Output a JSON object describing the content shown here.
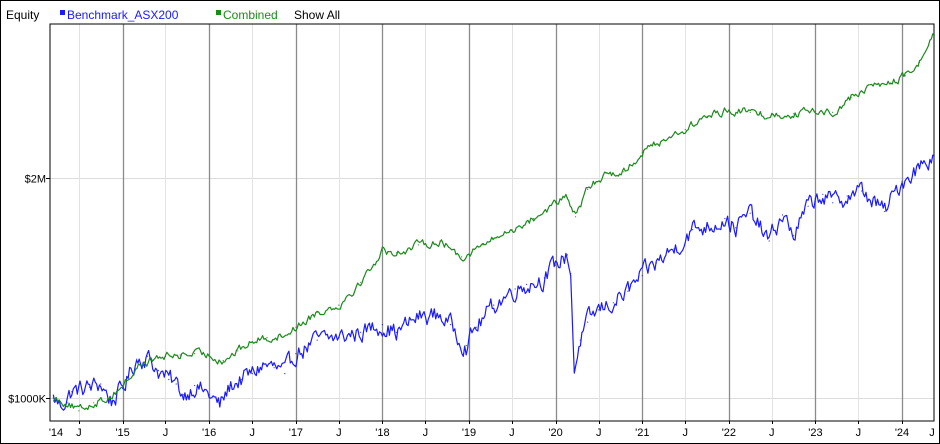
{
  "legend": {
    "title": "Equity",
    "series": [
      {
        "name": "Benchmark_ASX200",
        "color": "#1a1aff"
      },
      {
        "name": "Combined",
        "color": "#1a8a1a"
      }
    ],
    "show_all": "Show All"
  },
  "chart_data": {
    "type": "line",
    "ylabel": "Equity",
    "y_scale": "log",
    "y_ticks": [
      {
        "value": 1000000,
        "label": "$1000K"
      },
      {
        "value": 2000000,
        "label": "$2M"
      }
    ],
    "ylim": [
      930000,
      3250000
    ],
    "xlim": [
      "2014-03-01",
      "2024-05-15"
    ],
    "x_ticks": [
      {
        "date": "2014-01-01",
        "label": "'14",
        "major": true
      },
      {
        "date": "2014-07-01",
        "label": "J",
        "major": false
      },
      {
        "date": "2015-01-01",
        "label": "'15",
        "major": true
      },
      {
        "date": "2015-07-01",
        "label": "J",
        "major": false
      },
      {
        "date": "2016-01-01",
        "label": "'16",
        "major": true
      },
      {
        "date": "2016-07-01",
        "label": "J",
        "major": false
      },
      {
        "date": "2017-01-01",
        "label": "'17",
        "major": true
      },
      {
        "date": "2017-07-01",
        "label": "J",
        "major": false
      },
      {
        "date": "2018-01-01",
        "label": "'18",
        "major": true
      },
      {
        "date": "2018-07-01",
        "label": "J",
        "major": false
      },
      {
        "date": "2019-01-01",
        "label": "'19",
        "major": true
      },
      {
        "date": "2019-07-01",
        "label": "J",
        "major": false
      },
      {
        "date": "2020-01-01",
        "label": "'20",
        "major": true
      },
      {
        "date": "2020-07-01",
        "label": "J",
        "major": false
      },
      {
        "date": "2021-01-01",
        "label": "'21",
        "major": true
      },
      {
        "date": "2021-07-01",
        "label": "J",
        "major": false
      },
      {
        "date": "2022-01-01",
        "label": "'22",
        "major": true
      },
      {
        "date": "2022-07-01",
        "label": "J",
        "major": false
      },
      {
        "date": "2023-01-01",
        "label": "'23",
        "major": true
      },
      {
        "date": "2023-07-01",
        "label": "J",
        "major": false
      },
      {
        "date": "2024-01-01",
        "label": "'24",
        "major": true
      },
      {
        "date": "2024-07-01",
        "label": "J",
        "major": false
      }
    ],
    "grid": true,
    "series": [
      {
        "name": "Benchmark_ASX200",
        "color": "#1a1aff",
        "points": [
          [
            "2014-03-15",
            1000000
          ],
          [
            "2014-04-15",
            975000
          ],
          [
            "2014-06-01",
            1020000
          ],
          [
            "2014-08-15",
            1035000
          ],
          [
            "2014-10-01",
            1045000
          ],
          [
            "2014-11-15",
            990000
          ],
          [
            "2015-01-01",
            1030000
          ],
          [
            "2015-03-01",
            1130000
          ],
          [
            "2015-04-15",
            1140000
          ],
          [
            "2015-06-01",
            1090000
          ],
          [
            "2015-07-15",
            1060000
          ],
          [
            "2015-08-15",
            1045000
          ],
          [
            "2015-09-15",
            1010000
          ],
          [
            "2015-11-01",
            1040000
          ],
          [
            "2016-01-01",
            1010000
          ],
          [
            "2016-02-15",
            975000
          ],
          [
            "2016-04-01",
            1040000
          ],
          [
            "2016-05-15",
            1060000
          ],
          [
            "2016-07-01",
            1080000
          ],
          [
            "2016-08-15",
            1110000
          ],
          [
            "2016-10-01",
            1100000
          ],
          [
            "2016-11-15",
            1080000
          ],
          [
            "2017-01-01",
            1150000
          ],
          [
            "2017-04-01",
            1200000
          ],
          [
            "2017-07-01",
            1210000
          ],
          [
            "2017-10-01",
            1230000
          ],
          [
            "2018-01-01",
            1260000
          ],
          [
            "2018-03-01",
            1230000
          ],
          [
            "2018-06-01",
            1290000
          ],
          [
            "2018-09-01",
            1300000
          ],
          [
            "2018-10-15",
            1260000
          ],
          [
            "2018-12-20",
            1180000
          ],
          [
            "2019-02-01",
            1250000
          ],
          [
            "2019-04-15",
            1340000
          ],
          [
            "2019-07-15",
            1410000
          ],
          [
            "2019-09-01",
            1430000
          ],
          [
            "2019-11-15",
            1460000
          ],
          [
            "2020-01-01",
            1520000
          ],
          [
            "2020-02-20",
            1570000
          ],
          [
            "2020-03-05",
            1480000
          ],
          [
            "2020-03-20",
            1090000
          ],
          [
            "2020-04-15",
            1200000
          ],
          [
            "2020-05-15",
            1270000
          ],
          [
            "2020-07-01",
            1320000
          ],
          [
            "2020-09-01",
            1350000
          ],
          [
            "2020-11-01",
            1400000
          ],
          [
            "2021-01-01",
            1470000
          ],
          [
            "2021-03-01",
            1530000
          ],
          [
            "2021-05-15",
            1600000
          ],
          [
            "2021-08-01",
            1700000
          ],
          [
            "2021-10-01",
            1720000
          ],
          [
            "2021-12-15",
            1760000
          ],
          [
            "2022-01-30",
            1710000
          ],
          [
            "2022-04-01",
            1790000
          ],
          [
            "2022-06-20",
            1640000
          ],
          [
            "2022-08-15",
            1780000
          ],
          [
            "2022-10-01",
            1670000
          ],
          [
            "2022-12-01",
            1830000
          ],
          [
            "2023-02-01",
            1900000
          ],
          [
            "2023-03-15",
            1850000
          ],
          [
            "2023-05-15",
            1890000
          ],
          [
            "2023-07-15",
            1920000
          ],
          [
            "2023-10-20",
            1800000
          ],
          [
            "2024-01-01",
            1980000
          ],
          [
            "2024-03-15",
            2080000
          ],
          [
            "2024-05-10",
            2150000
          ]
        ]
      },
      {
        "name": "Combined",
        "color": "#1a8a1a",
        "points": [
          [
            "2014-03-15",
            1000000
          ],
          [
            "2014-05-15",
            985000
          ],
          [
            "2014-07-01",
            960000
          ],
          [
            "2014-09-01",
            985000
          ],
          [
            "2014-11-01",
            1000000
          ],
          [
            "2015-01-01",
            1040000
          ],
          [
            "2015-03-15",
            1110000
          ],
          [
            "2015-05-01",
            1125000
          ],
          [
            "2015-07-01",
            1140000
          ],
          [
            "2015-09-01",
            1145000
          ],
          [
            "2015-11-01",
            1150000
          ],
          [
            "2016-01-01",
            1145000
          ],
          [
            "2016-03-01",
            1125000
          ],
          [
            "2016-05-01",
            1160000
          ],
          [
            "2016-07-01",
            1195000
          ],
          [
            "2016-09-01",
            1210000
          ],
          [
            "2016-11-01",
            1215000
          ],
          [
            "2017-01-01",
            1250000
          ],
          [
            "2017-04-01",
            1310000
          ],
          [
            "2017-07-01",
            1340000
          ],
          [
            "2017-10-01",
            1440000
          ],
          [
            "2018-01-01",
            1590000
          ],
          [
            "2018-03-01",
            1580000
          ],
          [
            "2018-06-01",
            1620000
          ],
          [
            "2018-09-01",
            1640000
          ],
          [
            "2018-12-01",
            1560000
          ],
          [
            "2019-03-01",
            1620000
          ],
          [
            "2019-07-01",
            1700000
          ],
          [
            "2019-10-01",
            1760000
          ],
          [
            "2020-01-01",
            1850000
          ],
          [
            "2020-02-20",
            1880000
          ],
          [
            "2020-03-25",
            1770000
          ],
          [
            "2020-05-15",
            1930000
          ],
          [
            "2020-08-01",
            2030000
          ],
          [
            "2020-10-15",
            2040000
          ],
          [
            "2021-01-01",
            2170000
          ],
          [
            "2021-04-01",
            2260000
          ],
          [
            "2021-07-01",
            2330000
          ],
          [
            "2021-10-01",
            2430000
          ],
          [
            "2022-01-01",
            2480000
          ],
          [
            "2022-04-01",
            2460000
          ],
          [
            "2022-07-01",
            2440000
          ],
          [
            "2022-10-01",
            2450000
          ],
          [
            "2023-01-01",
            2470000
          ],
          [
            "2023-03-15",
            2460000
          ],
          [
            "2023-06-01",
            2580000
          ],
          [
            "2023-09-01",
            2680000
          ],
          [
            "2023-11-15",
            2700000
          ],
          [
            "2024-01-15",
            2760000
          ],
          [
            "2024-03-15",
            2880000
          ],
          [
            "2024-05-10",
            3150000
          ]
        ]
      }
    ]
  }
}
